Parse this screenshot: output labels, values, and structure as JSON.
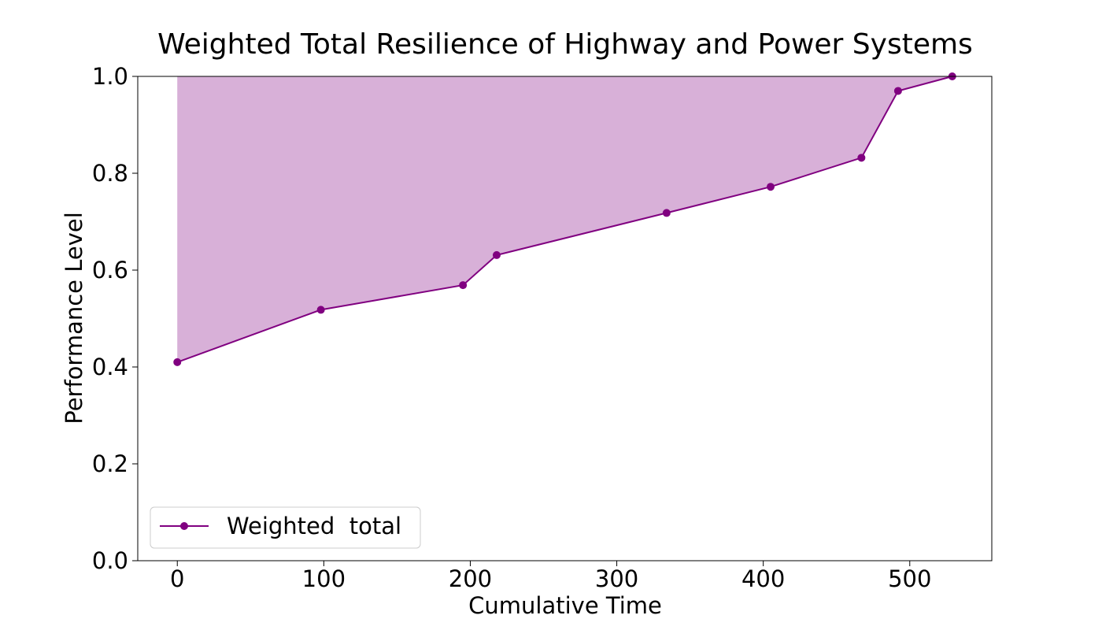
{
  "chart_data": {
    "type": "line",
    "title": "Weighted Total Resilience of Highway and Power Systems",
    "xlabel": "Cumulative Time",
    "ylabel": "Performance Level",
    "xlim": [
      -27,
      556
    ],
    "ylim": [
      0.0,
      1.0
    ],
    "xticks": [
      0,
      100,
      200,
      300,
      400,
      500
    ],
    "yticks": [
      0.0,
      0.2,
      0.4,
      0.6,
      0.8,
      1.0
    ],
    "ytick_labels": [
      "0.0",
      "0.2",
      "0.4",
      "0.6",
      "0.8",
      "1.0"
    ],
    "grid": false,
    "legend_position": "lower-left",
    "fill_between": {
      "upper": 1.0,
      "color": "#d8b0d8"
    },
    "series": [
      {
        "name": "Weighted  total",
        "color": "#800080",
        "marker": "circle",
        "x": [
          0,
          98,
          195,
          218,
          334,
          405,
          467,
          492,
          529
        ],
        "y": [
          0.41,
          0.518,
          0.569,
          0.631,
          0.718,
          0.772,
          0.832,
          0.97,
          1.0
        ]
      }
    ]
  }
}
